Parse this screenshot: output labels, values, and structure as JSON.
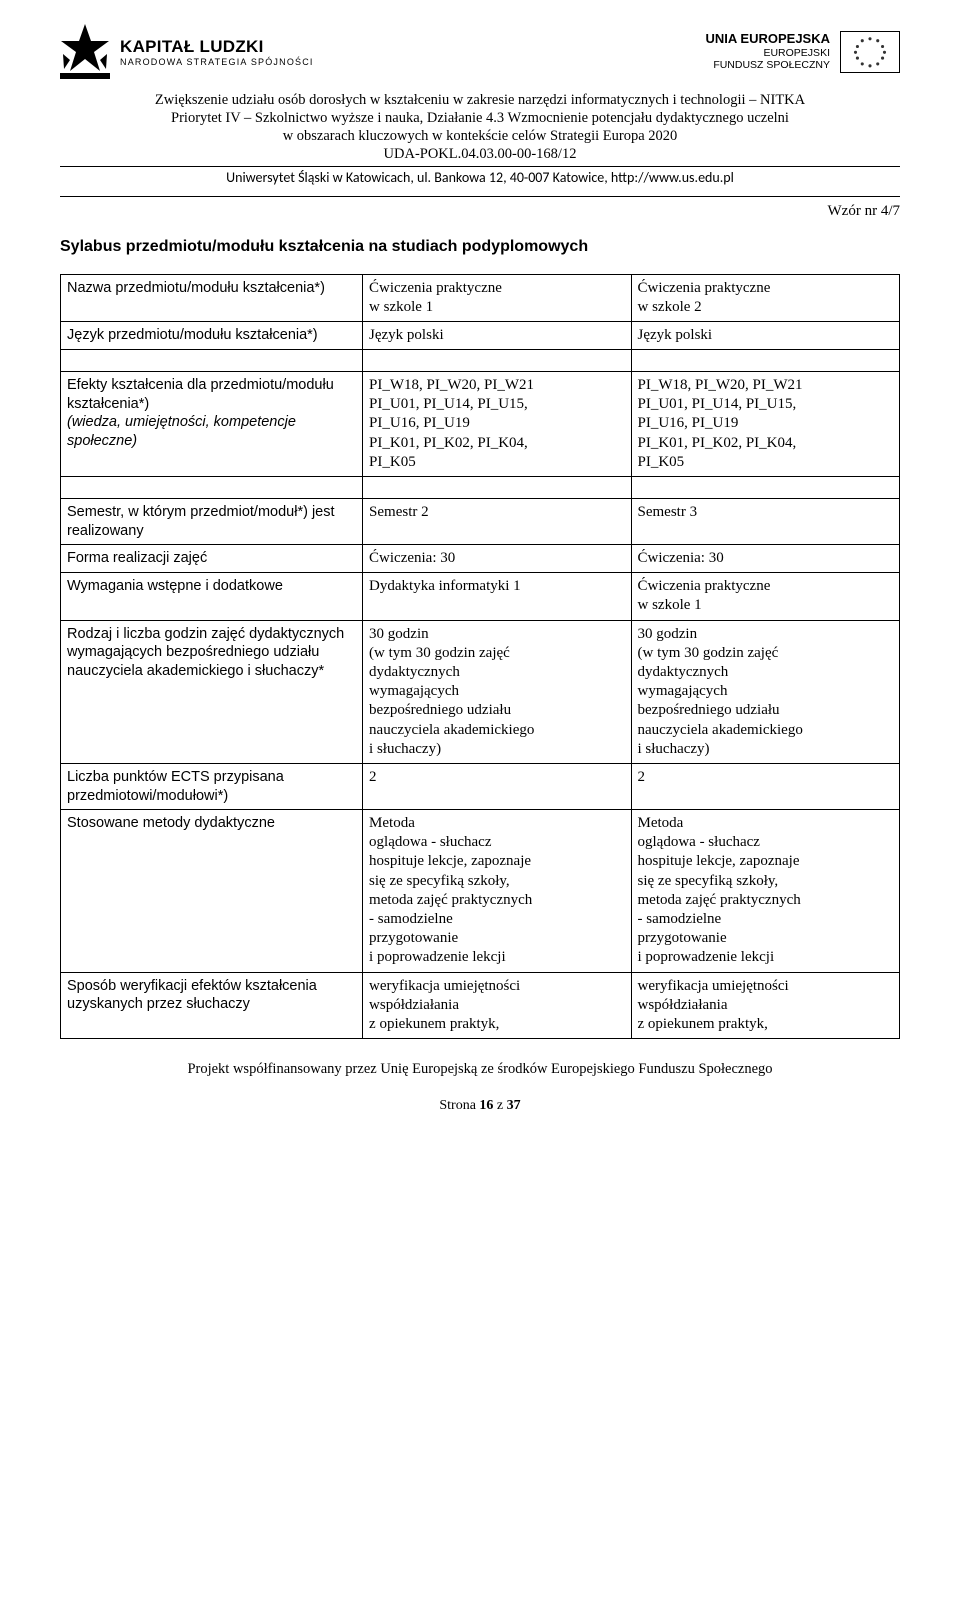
{
  "logos": {
    "kapital_line1": "KAPITAŁ LUDZKI",
    "kapital_line2": "NARODOWA STRATEGIA SPÓJNOŚCI",
    "eu_line1": "UNIA EUROPEJSKA",
    "eu_line2": "EUROPEJSKI",
    "eu_line3": "FUNDUSZ SPOŁECZNY"
  },
  "project": {
    "line1": "Zwiększenie udziału osób dorosłych w kształceniu w zakresie narzędzi informatycznych i technologii – NITKA",
    "line2": "Priorytet IV – Szkolnictwo wyższe i nauka, Działanie 4.3 Wzmocnienie potencjału dydaktycznego uczelni",
    "line3": "w obszarach kluczowych w kontekście celów Strategii Europa 2020",
    "line4": "UDA-POKL.04.03.00-00-168/12"
  },
  "university": "Uniwersytet Śląski w Katowicach, ul. Bankowa 12, 40-007 Katowice, http://www.us.edu.pl",
  "wzor": "Wzór nr 4/7",
  "title": "Sylabus przedmiotu/modułu kształcenia na studiach podyplomowych",
  "rows": {
    "r1": {
      "label": "Nazwa przedmiotu/modułu kształcenia*)",
      "c2": "Ćwiczenia praktyczne\nw szkole 1",
      "c3": "Ćwiczenia praktyczne\nw szkole 2"
    },
    "r2": {
      "label": "Język przedmiotu/modułu kształcenia*)",
      "c2": "Język polski",
      "c3": "Język polski"
    },
    "r3": {
      "label": "Efekty kształcenia dla przedmiotu/modułu kształcenia*)\n(wiedza, umiejętności, kompetencje społeczne)",
      "c2": "PI_W18, PI_W20, PI_W21\nPI_U01, PI_U14, PI_U15,\nPI_U16, PI_U19\nPI_K01, PI_K02, PI_K04,\nPI_K05",
      "c3": "PI_W18, PI_W20, PI_W21\nPI_U01, PI_U14, PI_U15,\nPI_U16, PI_U19\nPI_K01, PI_K02, PI_K04,\nPI_K05"
    },
    "r4": {
      "label": "Semestr, w którym przedmiot/moduł*) jest realizowany",
      "c2": "Semestr 2",
      "c3": "Semestr 3"
    },
    "r5": {
      "label": "Forma realizacji zajęć",
      "c2": "Ćwiczenia: 30",
      "c3": "Ćwiczenia: 30"
    },
    "r6": {
      "label": "Wymagania wstępne i dodatkowe",
      "c2": "Dydaktyka informatyki 1",
      "c3": "Ćwiczenia praktyczne\nw szkole 1"
    },
    "r7": {
      "label": "Rodzaj i liczba godzin zajęć dydaktycznych wymagających bezpośredniego udziału nauczyciela akademickiego i słuchaczy*",
      "c2": "30 godzin\n(w tym 30 godzin zajęć\ndydaktycznych\nwymagających\nbezpośredniego udziału\nnauczyciela akademickiego\ni słuchaczy)",
      "c3": "30 godzin\n(w tym 30 godzin zajęć\ndydaktycznych\nwymagających\nbezpośredniego udziału\nnauczyciela akademickiego\ni słuchaczy)"
    },
    "r8": {
      "label": "Liczba punktów ECTS przypisana przedmiotowi/modułowi*)",
      "c2": "2",
      "c3": "2"
    },
    "r9": {
      "label": "Stosowane metody dydaktyczne",
      "c2": "Metoda\noglądowa - słuchacz\nhospituje lekcje, zapoznaje\nsię ze specyfiką szkoły,\nmetoda zajęć praktycznych\n- samodzielne\nprzygotowanie\ni poprowadzenie lekcji",
      "c3": "Metoda\noglądowa - słuchacz\nhospituje lekcje, zapoznaje\nsię ze specyfiką szkoły,\nmetoda zajęć praktycznych\n- samodzielne\nprzygotowanie\ni poprowadzenie lekcji"
    },
    "r10": {
      "label": "Sposób weryfikacji efektów kształcenia uzyskanych przez słuchaczy",
      "c2": "weryfikacja umiejętności\nwspółdziałania\nz opiekunem praktyk,",
      "c3": "weryfikacja umiejętności\nwspółdziałania\nz opiekunem praktyk,"
    }
  },
  "r3_italic": "(wiedza, umiejętności, kompetencje społeczne)",
  "r3_plain": "Efekty kształcenia dla przedmiotu/modułu kształcenia*)",
  "footer_co": "Projekt współfinansowany przez Unię Europejską ze środków Europejskiego Funduszu Społecznego",
  "page_no_pre": "Strona ",
  "page_no_bold": "16",
  "page_no_mid": " z ",
  "page_no_total": "37",
  "colors": {
    "text": "#000000",
    "border": "#000000",
    "background": "#ffffff",
    "eu_star": "#333333"
  }
}
